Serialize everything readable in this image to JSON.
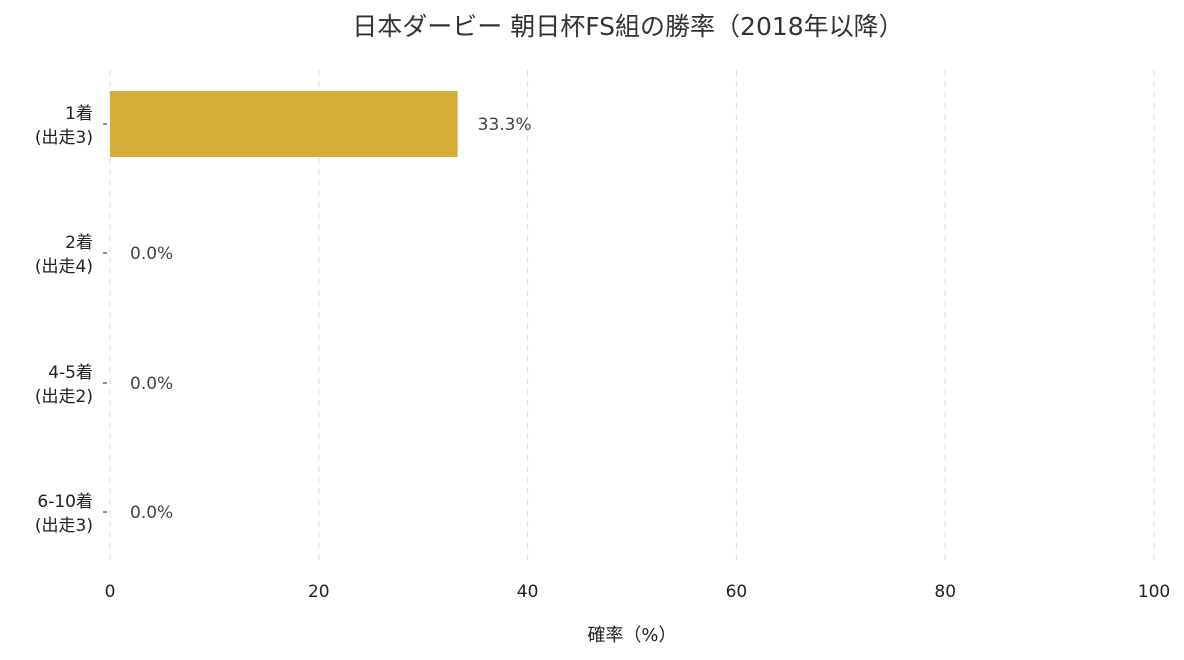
{
  "chart_data": {
    "type": "bar",
    "orientation": "horizontal",
    "title": "日本ダービー 朝日杯FS組の勝率（2018年以降）",
    "xlabel": "確率（%）",
    "ylabel": "",
    "xlim": [
      0,
      100
    ],
    "x_ticks": [
      "0",
      "20",
      "40",
      "60",
      "80",
      100
    ],
    "grid": "x-dashed",
    "categories": [
      {
        "label": "1着",
        "sublabel": "(出走3)"
      },
      {
        "label": "2着",
        "sublabel": "(出走4)"
      },
      {
        "label": "4-5着",
        "sublabel": "(出走2)"
      },
      {
        "label": "6-10着",
        "sublabel": "(出走3)"
      }
    ],
    "values": [
      33.3,
      0.0,
      0.0,
      0.0
    ],
    "value_labels": [
      "33.3%",
      "0.0%",
      "0.0%",
      "0.0%"
    ],
    "bar_color": "#d4af37"
  }
}
